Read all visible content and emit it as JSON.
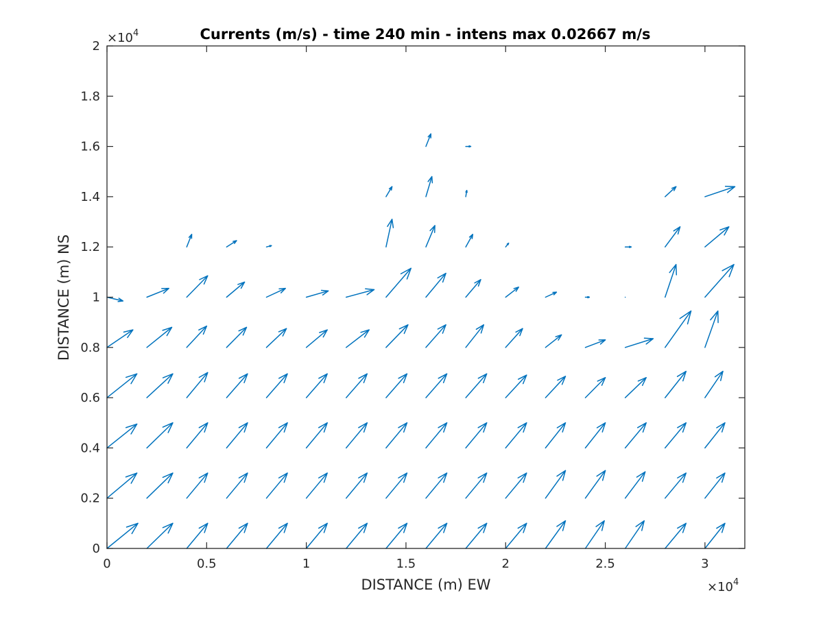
{
  "chart_data": {
    "type": "quiver",
    "title": "Currents (m/s) - time 240 min - intens max 0.02667 m/s",
    "xlabel": "DISTANCE (m) EW",
    "ylabel": "DISTANCE (m) NS",
    "xlim": [
      0,
      32000
    ],
    "ylim": [
      0,
      20000
    ],
    "x_ticks": [
      0,
      5000,
      10000,
      15000,
      20000,
      25000,
      30000
    ],
    "y_ticks": [
      0,
      2000,
      4000,
      6000,
      8000,
      10000,
      12000,
      14000,
      16000,
      18000,
      20000
    ],
    "x_tick_labels": [
      "0",
      "0.5",
      "1",
      "1.5",
      "2",
      "2.5",
      "3"
    ],
    "y_tick_labels": [
      "0",
      "0.2",
      "0.4",
      "0.6",
      "0.8",
      "1",
      "1.2",
      "1.4",
      "1.6",
      "1.8",
      "2"
    ],
    "x_exponent": {
      "base": "×10",
      "power": "4"
    },
    "y_exponent": {
      "base": "×10",
      "power": "4"
    },
    "arrow_color": "#0072BD",
    "grid": false,
    "vectors_note": "each vector: [x_start_m, y_start_m, dx_m, dy_m] (displayed arrow extent in plot units)",
    "vectors": [
      [
        0,
        0,
        1550,
        1000
      ],
      [
        2000,
        0,
        1300,
        1000
      ],
      [
        4000,
        0,
        1050,
        1000
      ],
      [
        6000,
        0,
        1050,
        1000
      ],
      [
        8000,
        0,
        1050,
        1000
      ],
      [
        10000,
        0,
        1050,
        1000
      ],
      [
        12000,
        0,
        1050,
        1000
      ],
      [
        14000,
        0,
        1050,
        1000
      ],
      [
        16000,
        0,
        1050,
        1000
      ],
      [
        18000,
        0,
        1050,
        1000
      ],
      [
        20000,
        0,
        1050,
        1000
      ],
      [
        22000,
        0,
        1000,
        1100
      ],
      [
        24000,
        0,
        950,
        1100
      ],
      [
        26000,
        0,
        950,
        1100
      ],
      [
        28000,
        0,
        1050,
        1000
      ],
      [
        30000,
        0,
        1000,
        1000
      ],
      [
        0,
        2000,
        1500,
        1000
      ],
      [
        2000,
        2000,
        1300,
        1000
      ],
      [
        4000,
        2000,
        1050,
        1000
      ],
      [
        6000,
        2000,
        1050,
        1000
      ],
      [
        8000,
        2000,
        1050,
        1000
      ],
      [
        10000,
        2000,
        1050,
        1000
      ],
      [
        12000,
        2000,
        1050,
        1000
      ],
      [
        14000,
        2000,
        1050,
        1000
      ],
      [
        16000,
        2000,
        1050,
        1000
      ],
      [
        18000,
        2000,
        1050,
        1000
      ],
      [
        20000,
        2000,
        1050,
        1000
      ],
      [
        22000,
        2000,
        1000,
        1100
      ],
      [
        24000,
        2000,
        1000,
        1100
      ],
      [
        26000,
        2000,
        1000,
        1050
      ],
      [
        28000,
        2000,
        1050,
        1000
      ],
      [
        30000,
        2000,
        1000,
        1000
      ],
      [
        0,
        4000,
        1500,
        950
      ],
      [
        2000,
        4000,
        1300,
        1000
      ],
      [
        4000,
        4000,
        1050,
        1000
      ],
      [
        6000,
        4000,
        1050,
        1000
      ],
      [
        8000,
        4000,
        1050,
        1000
      ],
      [
        10000,
        4000,
        1050,
        1000
      ],
      [
        12000,
        4000,
        1050,
        1000
      ],
      [
        14000,
        4000,
        1050,
        1000
      ],
      [
        16000,
        4000,
        1050,
        1000
      ],
      [
        18000,
        4000,
        1050,
        1000
      ],
      [
        20000,
        4000,
        1050,
        1000
      ],
      [
        22000,
        4000,
        1000,
        1000
      ],
      [
        24000,
        4000,
        1000,
        1000
      ],
      [
        26000,
        4000,
        1050,
        1000
      ],
      [
        28000,
        4000,
        1050,
        1000
      ],
      [
        30000,
        4000,
        1000,
        1000
      ],
      [
        0,
        6000,
        1500,
        950
      ],
      [
        2000,
        6000,
        1300,
        950
      ],
      [
        4000,
        6000,
        1050,
        1000
      ],
      [
        6000,
        6000,
        1050,
        950
      ],
      [
        8000,
        6000,
        1050,
        950
      ],
      [
        10000,
        6000,
        1050,
        950
      ],
      [
        12000,
        6000,
        1050,
        950
      ],
      [
        14000,
        6000,
        1050,
        950
      ],
      [
        16000,
        6000,
        1050,
        950
      ],
      [
        18000,
        6000,
        1050,
        950
      ],
      [
        20000,
        6000,
        1050,
        900
      ],
      [
        22000,
        6000,
        1000,
        850
      ],
      [
        24000,
        6000,
        1000,
        800
      ],
      [
        26000,
        6000,
        1050,
        800
      ],
      [
        28000,
        6000,
        1050,
        1050
      ],
      [
        30000,
        6000,
        900,
        1050
      ],
      [
        0,
        8000,
        1300,
        700
      ],
      [
        2000,
        8000,
        1250,
        800
      ],
      [
        4000,
        8000,
        1000,
        850
      ],
      [
        6000,
        8000,
        1000,
        800
      ],
      [
        8000,
        8000,
        1000,
        750
      ],
      [
        10000,
        8000,
        1050,
        700
      ],
      [
        12000,
        8000,
        1150,
        700
      ],
      [
        14000,
        8000,
        1100,
        900
      ],
      [
        16000,
        8000,
        1000,
        900
      ],
      [
        18000,
        8000,
        900,
        900
      ],
      [
        20000,
        8000,
        850,
        750
      ],
      [
        22000,
        8000,
        800,
        500
      ],
      [
        24000,
        8000,
        1000,
        300
      ],
      [
        26000,
        8000,
        1400,
        350
      ],
      [
        28000,
        8000,
        1300,
        1450
      ],
      [
        30000,
        8000,
        650,
        1450
      ],
      [
        0,
        10000,
        800,
        -150
      ],
      [
        2000,
        10000,
        1100,
        350
      ],
      [
        4000,
        10000,
        1050,
        850
      ],
      [
        6000,
        10000,
        900,
        600
      ],
      [
        8000,
        10000,
        950,
        350
      ],
      [
        10000,
        10000,
        1100,
        250
      ],
      [
        12000,
        10000,
        1400,
        300
      ],
      [
        14000,
        10000,
        1250,
        1150
      ],
      [
        16000,
        10000,
        1000,
        950
      ],
      [
        18000,
        10000,
        750,
        700
      ],
      [
        20000,
        10000,
        650,
        400
      ],
      [
        22000,
        10000,
        550,
        200
      ],
      [
        24000,
        10000,
        200,
        0
      ],
      [
        26000,
        10000,
        0,
        0
      ],
      [
        28000,
        10000,
        550,
        1300
      ],
      [
        30000,
        10000,
        1450,
        1300
      ],
      [
        4000,
        12000,
        250,
        500
      ],
      [
        6000,
        12000,
        500,
        250
      ],
      [
        8000,
        12000,
        250,
        50
      ],
      [
        14000,
        12000,
        300,
        1100
      ],
      [
        16000,
        12000,
        450,
        850
      ],
      [
        18000,
        12000,
        350,
        500
      ],
      [
        20000,
        12000,
        150,
        150
      ],
      [
        26000,
        12000,
        300,
        0
      ],
      [
        28000,
        12000,
        750,
        800
      ],
      [
        30000,
        12000,
        1200,
        800
      ],
      [
        14000,
        14000,
        300,
        400
      ],
      [
        16000,
        14000,
        300,
        800
      ],
      [
        18000,
        14000,
        50,
        250
      ],
      [
        28000,
        14000,
        550,
        400
      ],
      [
        30000,
        14000,
        1500,
        400
      ],
      [
        16000,
        16000,
        250,
        500
      ],
      [
        18000,
        16000,
        250,
        0
      ]
    ]
  }
}
